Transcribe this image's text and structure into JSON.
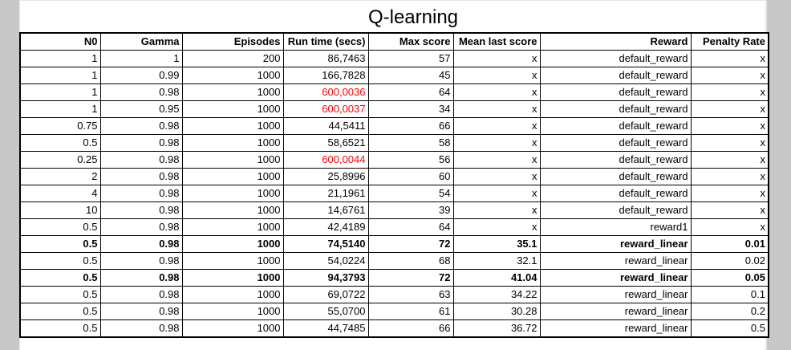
{
  "title": "Q-learning",
  "colors": {
    "highlight_text": "#ff0000"
  },
  "columns": [
    "N0",
    "Gamma",
    "Episodes",
    "Run time (secs)",
    "Max score",
    "Mean last score",
    "Reward",
    "Penalty Rate"
  ],
  "rows": [
    {
      "cells": [
        "1",
        "1",
        "200",
        "86,7463",
        "57",
        "x",
        "default_reward",
        "x"
      ],
      "bold": false,
      "red_runtime": false
    },
    {
      "cells": [
        "1",
        "0.99",
        "1000",
        "166,7828",
        "45",
        "x",
        "default_reward",
        "x"
      ],
      "bold": false,
      "red_runtime": false
    },
    {
      "cells": [
        "1",
        "0.98",
        "1000",
        "600,0036",
        "64",
        "x",
        "default_reward",
        "x"
      ],
      "bold": false,
      "red_runtime": true
    },
    {
      "cells": [
        "1",
        "0.95",
        "1000",
        "600,0037",
        "34",
        "x",
        "default_reward",
        "x"
      ],
      "bold": false,
      "red_runtime": true
    },
    {
      "cells": [
        "0.75",
        "0.98",
        "1000",
        "44,5411",
        "66",
        "x",
        "default_reward",
        "x"
      ],
      "bold": false,
      "red_runtime": false
    },
    {
      "cells": [
        "0.5",
        "0.98",
        "1000",
        "58,6521",
        "58",
        "x",
        "default_reward",
        "x"
      ],
      "bold": false,
      "red_runtime": false
    },
    {
      "cells": [
        "0.25",
        "0.98",
        "1000",
        "600,0044",
        "56",
        "x",
        "default_reward",
        "x"
      ],
      "bold": false,
      "red_runtime": true
    },
    {
      "cells": [
        "2",
        "0.98",
        "1000",
        "25,8996",
        "60",
        "x",
        "default_reward",
        "x"
      ],
      "bold": false,
      "red_runtime": false
    },
    {
      "cells": [
        "4",
        "0.98",
        "1000",
        "21,1961",
        "54",
        "x",
        "default_reward",
        "x"
      ],
      "bold": false,
      "red_runtime": false
    },
    {
      "cells": [
        "10",
        "0.98",
        "1000",
        "14,6761",
        "39",
        "x",
        "default_reward",
        "x"
      ],
      "bold": false,
      "red_runtime": false
    },
    {
      "cells": [
        "0.5",
        "0.98",
        "1000",
        "42,4189",
        "64",
        "x",
        "reward1",
        "x"
      ],
      "bold": false,
      "red_runtime": false
    },
    {
      "cells": [
        "0.5",
        "0.98",
        "1000",
        "74,5140",
        "72",
        "35.1",
        "reward_linear",
        "0.01"
      ],
      "bold": true,
      "red_runtime": false
    },
    {
      "cells": [
        "0.5",
        "0.98",
        "1000",
        "54,0224",
        "68",
        "32.1",
        "reward_linear",
        "0.02"
      ],
      "bold": false,
      "red_runtime": false
    },
    {
      "cells": [
        "0.5",
        "0.98",
        "1000",
        "94,3793",
        "72",
        "41.04",
        "reward_linear",
        "0.05"
      ],
      "bold": true,
      "red_runtime": false
    },
    {
      "cells": [
        "0.5",
        "0.98",
        "1000",
        "69,0722",
        "63",
        "34.22",
        "reward_linear",
        "0.1"
      ],
      "bold": false,
      "red_runtime": false
    },
    {
      "cells": [
        "0.5",
        "0.98",
        "1000",
        "55,0700",
        "61",
        "30.28",
        "reward_linear",
        "0.2"
      ],
      "bold": false,
      "red_runtime": false
    },
    {
      "cells": [
        "0.5",
        "0.98",
        "1000",
        "44,7485",
        "66",
        "36.72",
        "reward_linear",
        "0.5"
      ],
      "bold": false,
      "red_runtime": false
    }
  ]
}
